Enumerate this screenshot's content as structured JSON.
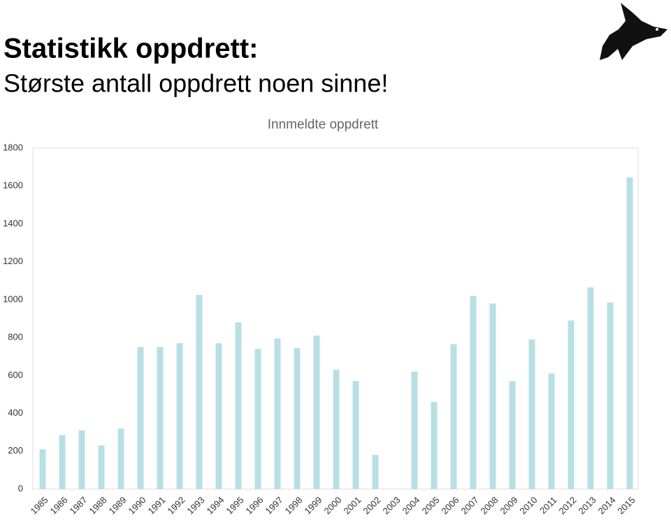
{
  "header": {
    "title": "Statistikk oppdrett:",
    "subtitle": "Største antall oppdrett noen sinne!"
  },
  "chart_data": {
    "type": "bar",
    "title": "Innmeldte oppdrett",
    "categories": [
      "1985",
      "1986",
      "1987",
      "1988",
      "1989",
      "1990",
      "1991",
      "1992",
      "1993",
      "1994",
      "1995",
      "1996",
      "1997",
      "1998",
      "1999",
      "2000",
      "2001",
      "2002",
      "2003",
      "2004",
      "2005",
      "2006",
      "2007",
      "2008",
      "2009",
      "2010",
      "2011",
      "2012",
      "2013",
      "2014",
      "2015"
    ],
    "values": [
      210,
      285,
      310,
      230,
      320,
      750,
      750,
      770,
      1025,
      770,
      880,
      740,
      795,
      745,
      810,
      630,
      570,
      180,
      null,
      620,
      460,
      765,
      1020,
      980,
      570,
      790,
      610,
      890,
      1065,
      985,
      1645
    ],
    "color": "#b7e0e4",
    "ylim": [
      0,
      1800
    ],
    "yticks": [
      0,
      200,
      400,
      600,
      800,
      1000,
      1200,
      1400,
      1600,
      1800
    ],
    "grid": false
  }
}
